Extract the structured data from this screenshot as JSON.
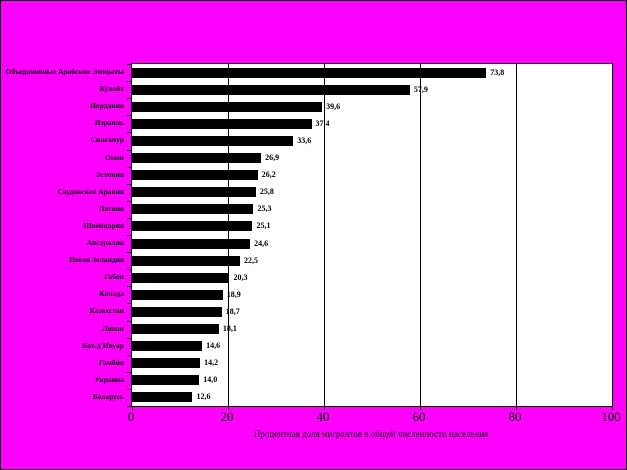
{
  "colors": {
    "background": "#FF00FF",
    "plot_background": "#FFFFFF",
    "bar": "#000000",
    "text": "#000000",
    "grid": "#000000"
  },
  "chart_data": {
    "type": "bar",
    "orientation": "horizontal",
    "title": "",
    "xlabel": "Процентная доля мигрантов в общей численности населения",
    "ylabel": "",
    "xlim": [
      0,
      100
    ],
    "xticks": [
      0,
      20,
      40,
      60,
      80,
      100
    ],
    "grid": "vertical-major",
    "legend": "none",
    "categories": [
      "Объединенные Арабские Эмираты",
      "Кувейт",
      "Иордания",
      "Израиль",
      "Сингапур",
      "Оман",
      "Эстония",
      "Саудовская Аравия",
      "Латвия",
      "Швейцария",
      "Австралия",
      "Новая Зеландия",
      "Габон",
      "Канада",
      "Казахстан",
      "Ливан",
      "Кот-д'Ивуар",
      "Гамбия",
      "Украина",
      "Беларусь"
    ],
    "values": [
      73.8,
      57.9,
      39.6,
      37.4,
      33.6,
      26.9,
      26.2,
      25.8,
      25.3,
      25.1,
      24.6,
      22.5,
      20.3,
      18.9,
      18.7,
      18.1,
      14.6,
      14.2,
      14.0,
      12.6
    ],
    "value_labels": [
      "73,8",
      "57,9",
      "39,6",
      "37,4",
      "33,6",
      "26,9",
      "26,2",
      "25,8",
      "25,3",
      "25,1",
      "24,6",
      "22,5",
      "20,3",
      "18,9",
      "18,7",
      "18,1",
      "14,6",
      "14,2",
      "14,0",
      "12,6"
    ]
  }
}
